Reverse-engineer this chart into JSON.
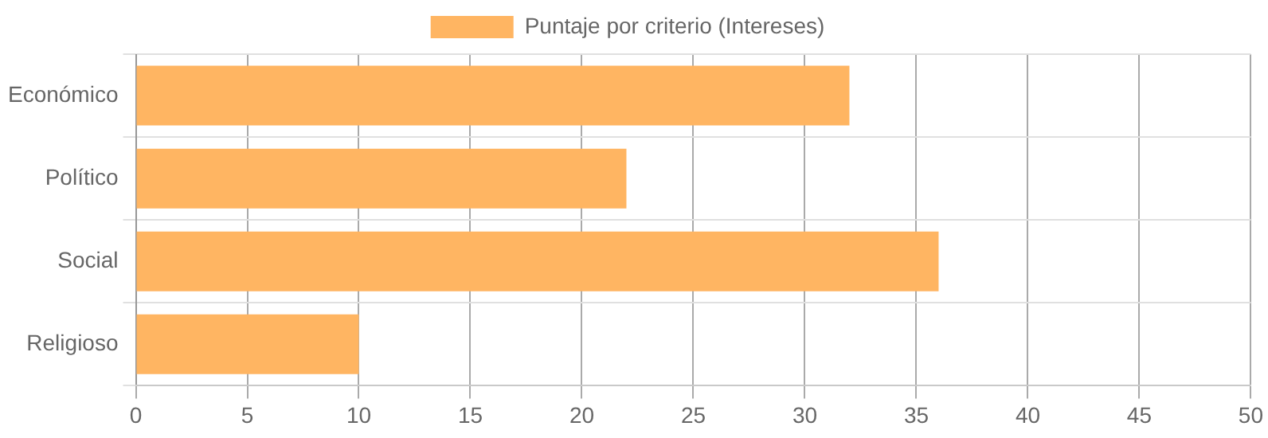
{
  "chart_data": {
    "type": "bar",
    "orientation": "horizontal",
    "categories": [
      "Económico",
      "Político",
      "Social",
      "Religioso"
    ],
    "series": [
      {
        "name": "Puntaje por criterio (Intereses)",
        "color": "#ffb562",
        "values": [
          32,
          22,
          36,
          10
        ]
      }
    ],
    "xlim": [
      0,
      50
    ],
    "xticks": [
      0,
      5,
      10,
      15,
      20,
      25,
      30,
      35,
      40,
      45,
      50
    ],
    "grid": true,
    "legend": "top"
  }
}
